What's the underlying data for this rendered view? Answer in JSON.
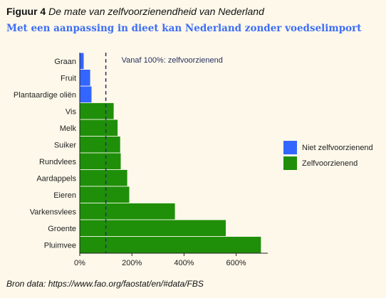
{
  "figure": {
    "label": "Figuur 4",
    "title": "De mate van zelfvoorzienendheid van Nederland",
    "subtitle": "Met een aanpassing in dieet kan Nederland zonder voedselimport",
    "source": "Bron data: https://www.fao.org/faostat/en/#data/FBS"
  },
  "chart_data": {
    "type": "bar",
    "orientation": "horizontal",
    "categories": [
      "Graan",
      "Fruit",
      "Plantaardige oliën",
      "Vis",
      "Melk",
      "Suiker",
      "Rundvlees",
      "Aardappels",
      "Eieren",
      "Varkensvlees",
      "Groente",
      "Pluimvee"
    ],
    "values": [
      15,
      40,
      45,
      130,
      145,
      155,
      157,
      182,
      190,
      365,
      560,
      695
    ],
    "status": [
      "Niet zelfvoorzienend",
      "Niet zelfvoorzienend",
      "Niet zelfvoorzienend",
      "Zelfvoorzienend",
      "Zelfvoorzienend",
      "Zelfvoorzienend",
      "Zelfvoorzienend",
      "Zelfvoorzienend",
      "Zelfvoorzienend",
      "Zelfvoorzienend",
      "Zelfvoorzienend",
      "Zelfvoorzienend"
    ],
    "legend": [
      {
        "name": "Niet zelfvoorzienend",
        "color": "#3366ff"
      },
      {
        "name": "Zelfvoorzienend",
        "color": "#1f8f0a"
      }
    ],
    "legend_position": "right",
    "xticks": [
      0,
      200,
      400,
      600
    ],
    "xtick_labels": [
      "0%",
      "200%",
      "400%",
      "600%"
    ],
    "xlim": [
      0,
      750
    ],
    "unit": "%",
    "reference_line": {
      "value": 100,
      "label": "Vanaf 100%: zelfvoorzienend"
    },
    "grid": false
  }
}
